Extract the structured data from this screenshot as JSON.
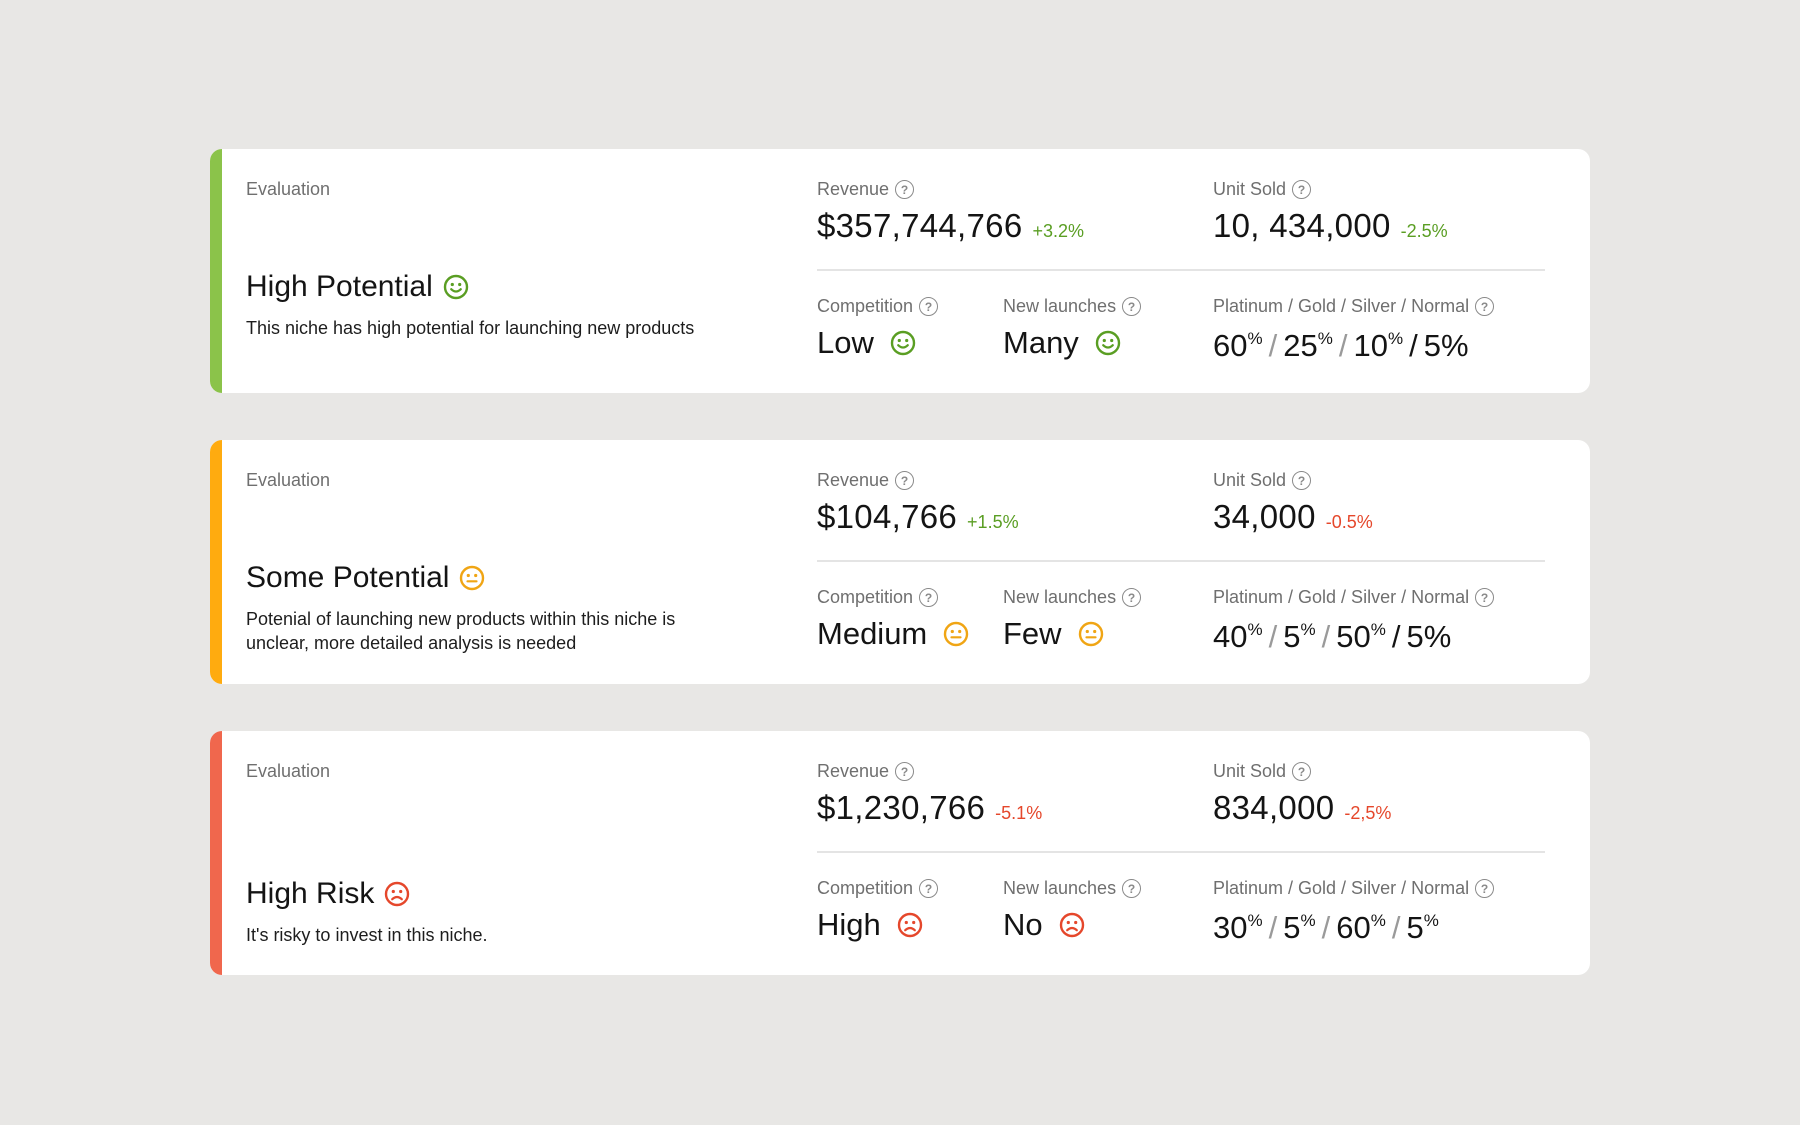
{
  "colors": {
    "green": "#8bc34a",
    "green_text": "#5a9e23",
    "orange": "#ffab0f",
    "orange_icon": "#f0a514",
    "red": "#f0674d",
    "red_text": "#e5472b"
  },
  "cards": [
    {
      "evaluation_label": "Evaluation",
      "title": "High Potential",
      "mood": "smile-icon",
      "description": "This niche has high potential for launching new products",
      "revenue_label": "Revenue",
      "revenue": "$357,744,766",
      "revenue_delta": "+3.2%",
      "units_label": "Unit Sold",
      "units": "10, 434,000",
      "units_delta": "-2.5%",
      "competition_label": "Competition",
      "competition": "Low",
      "launches_label": "New launches",
      "launches": "Many",
      "tiers_label": "Platinum / Gold / Silver / Normal",
      "tiers": [
        "60",
        "25",
        "10",
        "5"
      ]
    },
    {
      "evaluation_label": "Evaluation",
      "title": "Some Potential",
      "mood": "neutral-face-icon",
      "description": "Potenial of launching new products within this niche is unclear, more detailed analysis is needed",
      "revenue_label": "Revenue",
      "revenue": "$104,766",
      "revenue_delta": "+1.5%",
      "units_label": "Unit Sold",
      "units": "34,000",
      "units_delta": "-0.5%",
      "competition_label": "Competition",
      "competition": "Medium",
      "launches_label": "New launches",
      "launches": "Few",
      "tiers_label": "Platinum / Gold / Silver / Normal",
      "tiers": [
        "40",
        "5",
        "50",
        "5"
      ]
    },
    {
      "evaluation_label": "Evaluation",
      "title": "High Risk",
      "mood": "frown-icon",
      "description": "It's risky to invest in this niche.",
      "revenue_label": "Revenue",
      "revenue": "$1,230,766",
      "revenue_delta": "-5.1%",
      "units_label": "Unit Sold",
      "units": "834,000",
      "units_delta": "-2,5%",
      "competition_label": "Competition",
      "competition": "High",
      "launches_label": "New launches",
      "launches": "No",
      "tiers_label": "Platinum / Gold / Silver / Normal",
      "tiers": [
        "30",
        "5",
        "60",
        "5"
      ]
    }
  ],
  "percent_sign": "%",
  "help_icon_glyph": "?"
}
